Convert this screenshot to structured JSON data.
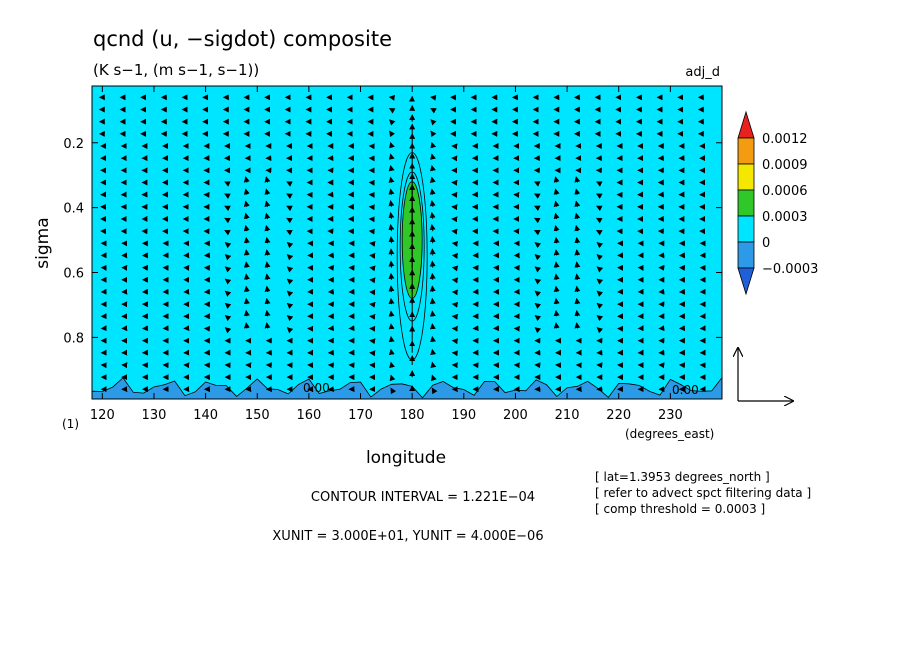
{
  "chart_data": {
    "type": "heatmap",
    "title": "qcnd (u, −sigdot) composite",
    "subtitle": "(K s−1, (m s−1, s−1))",
    "tag": "adj_d",
    "xlabel": "longitude",
    "xunits": "(degrees_east)",
    "ylabel": "sigma",
    "xlim": [
      118,
      240
    ],
    "ylim": [
      0.99,
      0.025
    ],
    "x_ticks": [
      "120",
      "130",
      "140",
      "150",
      "160",
      "170",
      "180",
      "190",
      "200",
      "210",
      "220",
      "230"
    ],
    "y_ticks": [
      "0.2",
      "0.4",
      "0.6",
      "0.8"
    ],
    "panel_label": "(1)",
    "colorbar": {
      "labels": [
        "0.0012",
        "0.0009",
        "0.0006",
        "0.0003",
        "0",
        "−0.0003"
      ],
      "levels": [
        0.0012,
        0.0009,
        0.0006,
        0.0003,
        0,
        -0.0003
      ],
      "colors": [
        "#e8211f",
        "#f39c12",
        "#f4e800",
        "#30c828",
        "#00e5ff",
        "#2c9ae6",
        "#1f5fd8"
      ]
    },
    "contour_labels": [
      "0.00",
      "0.00"
    ],
    "notes": [
      "[ lat=1.3953 degrees_north ]",
      "[ refer to advect spct filtering data ]",
      "[ comp threshold = 0.0003 ]"
    ],
    "contour_interval": "CONTOUR INTERVAL = 1.221E−04",
    "units_line": "XUNIT = 3.000E+01, YUNIT = 4.000E−06",
    "features": [
      {
        "kind": "max",
        "x": 180,
        "y": 0.5,
        "value": 0.0006,
        "note": "green core between sigma 0.3 and 0.7"
      },
      {
        "kind": "min",
        "y_range": [
          0.93,
          0.99
        ],
        "value": -0.0003,
        "note": "blue band along the bottom"
      }
    ]
  }
}
